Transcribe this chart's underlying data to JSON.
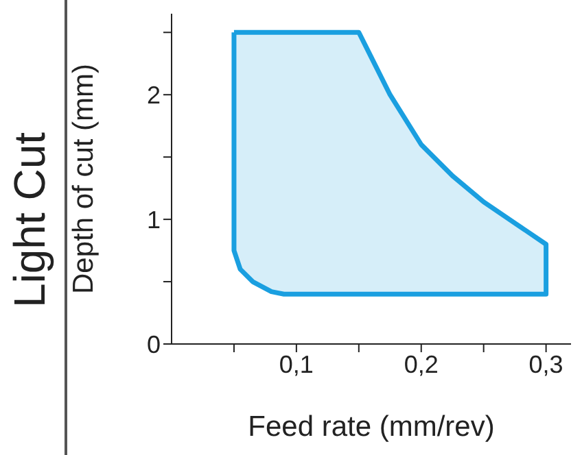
{
  "chart_data": {
    "type": "area",
    "title": "Light Cut",
    "xlabel": "Feed rate (mm/rev)",
    "ylabel": "Depth of cut (mm)",
    "series": [
      {
        "color": "#1a9fe0",
        "x": [
          0.05,
          0.15,
          0.16,
          0.175,
          0.2,
          0.225,
          0.25,
          0.275,
          0.3,
          0.3,
          0.09,
          0.08,
          0.065,
          0.055,
          0.05,
          0.05
        ],
        "values": [
          2.5,
          2.5,
          2.3,
          2.0,
          1.6,
          1.35,
          1.14,
          0.97,
          0.8,
          0.4,
          0.4,
          0.42,
          0.5,
          0.6,
          0.75,
          2.5
        ]
      }
    ],
    "xlim": [
      0,
      0.32
    ],
    "ylim": [
      0,
      2.65
    ],
    "xticks": [
      {
        "value": 0.05,
        "label": null
      },
      {
        "value": 0.1,
        "label": "0,1"
      },
      {
        "value": 0.15,
        "label": null
      },
      {
        "value": 0.2,
        "label": "0,2"
      },
      {
        "value": 0.25,
        "label": null
      },
      {
        "value": 0.3,
        "label": "0,3"
      }
    ],
    "yticks": [
      0,
      {
        "value": 0.5,
        "label": null
      },
      1,
      {
        "value": 1.5,
        "label": null
      },
      2,
      {
        "value": 2.5,
        "label": null
      }
    ],
    "grid": false,
    "legend": false
  }
}
